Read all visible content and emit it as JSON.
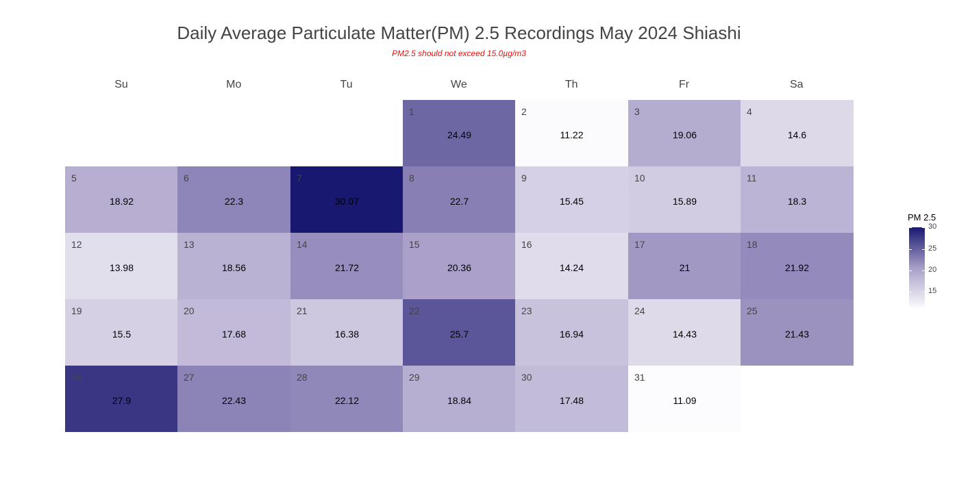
{
  "title": "Daily Average Particulate Matter(PM) 2.5 Recordings May 2024 Shiashi",
  "subtitle": "PM2.5 should not exceed 15.0µg/m3",
  "weekdays": [
    "Su",
    "Mo",
    "Tu",
    "We",
    "Th",
    "Fr",
    "Sa"
  ],
  "legend": {
    "title": "PM 2.5",
    "ticks": [
      30,
      25,
      20,
      15
    ],
    "min": 11.09,
    "max": 30.07
  },
  "colors": {
    "low": "#fcfbfd",
    "high": "#181870"
  },
  "chart_data": {
    "type": "heatmap",
    "title": "Daily Average Particulate Matter(PM) 2.5 Recordings May 2024 Shiashi",
    "month": "May 2024",
    "first_weekday_index": 3,
    "days": [
      {
        "day": "1",
        "value": 24.49
      },
      {
        "day": "2",
        "value": 11.22
      },
      {
        "day": "3",
        "value": 19.06
      },
      {
        "day": "4",
        "value": 14.6
      },
      {
        "day": "5",
        "value": 18.92
      },
      {
        "day": "6",
        "value": 22.3
      },
      {
        "day": "7",
        "value": 30.07
      },
      {
        "day": "8",
        "value": 22.7
      },
      {
        "day": "9",
        "value": 15.45
      },
      {
        "day": "10",
        "value": 15.89
      },
      {
        "day": "11",
        "value": 18.3
      },
      {
        "day": "12",
        "value": 13.98
      },
      {
        "day": "13",
        "value": 18.56
      },
      {
        "day": "14",
        "value": 21.72
      },
      {
        "day": "15",
        "value": 20.36
      },
      {
        "day": "16",
        "value": 14.24
      },
      {
        "day": "17",
        "value": 21
      },
      {
        "day": "18",
        "value": 21.92
      },
      {
        "day": "19",
        "value": 15.5
      },
      {
        "day": "20",
        "value": 17.68
      },
      {
        "day": "21",
        "value": 16.38
      },
      {
        "day": "22",
        "value": 25.7
      },
      {
        "day": "23",
        "value": 16.94
      },
      {
        "day": "24",
        "value": 14.43
      },
      {
        "day": "25",
        "value": 21.43
      },
      {
        "day": "26",
        "value": 27.9
      },
      {
        "day": "27",
        "value": 22.43
      },
      {
        "day": "28",
        "value": 22.12
      },
      {
        "day": "29",
        "value": 18.84
      },
      {
        "day": "30",
        "value": 17.48
      },
      {
        "day": "31",
        "value": 11.09
      }
    ]
  }
}
